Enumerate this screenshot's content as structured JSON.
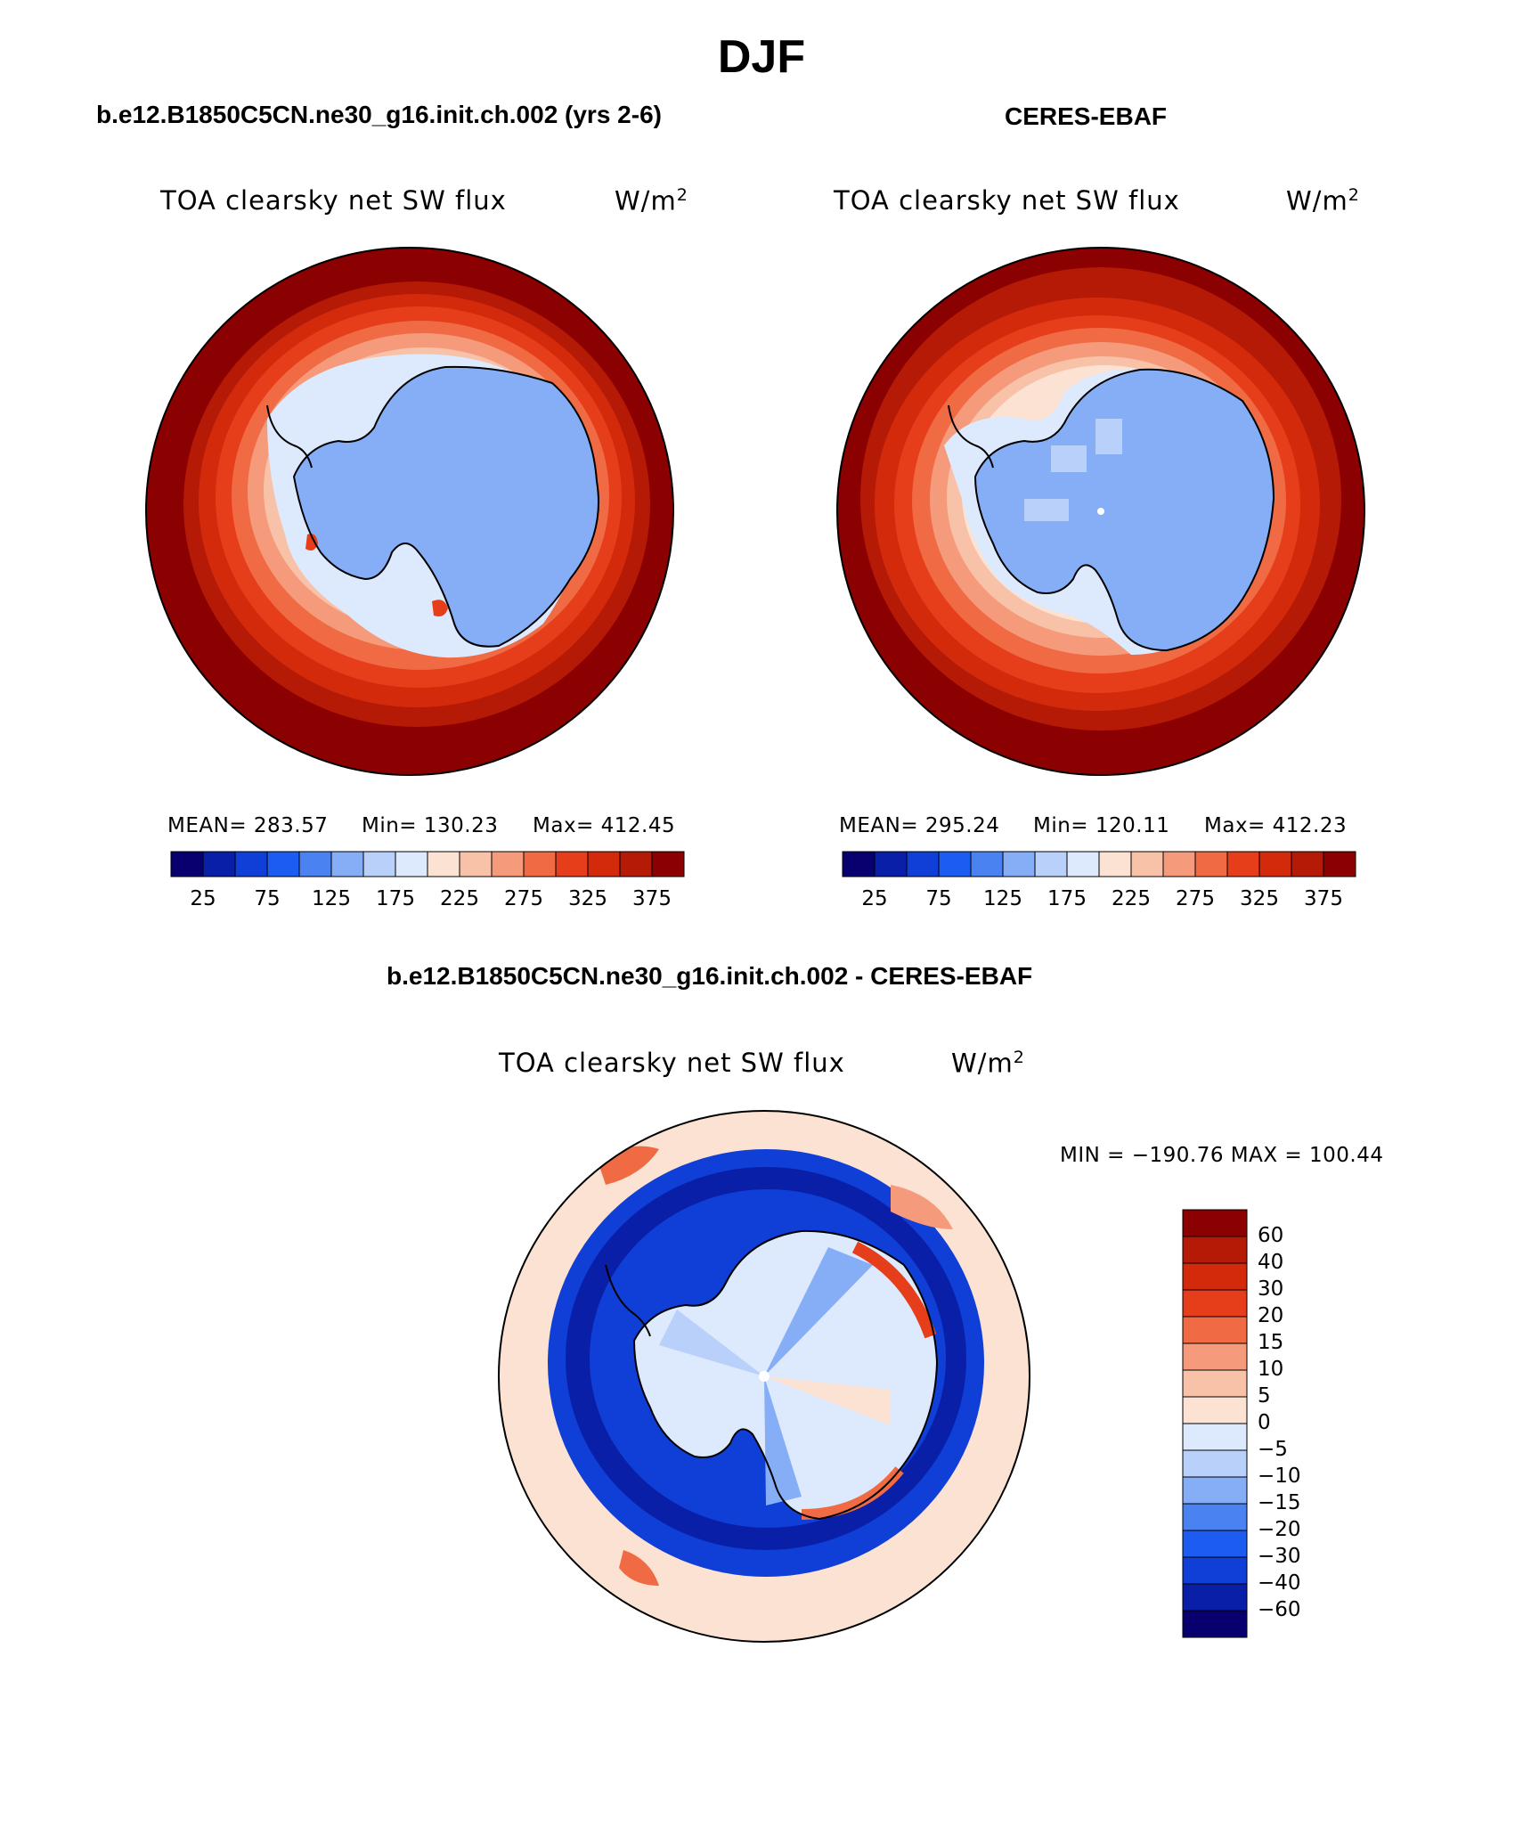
{
  "title": "DJF",
  "panels": [
    {
      "id": "model",
      "title": "b.e12.B1850C5CN.ne30_g16.init.ch.002 (yrs 2-6)",
      "variable": "TOA clearsky net SW flux",
      "units": "W/m",
      "units_exponent": "2",
      "stats": {
        "mean": "MEAN= 283.57",
        "min": "Min= 130.23",
        "max": "Max= 412.45"
      },
      "colorbar_ticks": [
        "25",
        "75",
        "125",
        "175",
        "225",
        "275",
        "325",
        "375"
      ]
    },
    {
      "id": "obs",
      "title": "CERES-EBAF",
      "variable": "TOA clearsky net SW flux",
      "units": "W/m",
      "units_exponent": "2",
      "stats": {
        "mean": "MEAN= 295.24",
        "min": "Min= 120.11",
        "max": "Max= 412.23"
      },
      "colorbar_ticks": [
        "25",
        "75",
        "125",
        "175",
        "225",
        "275",
        "325",
        "375"
      ]
    }
  ],
  "difference": {
    "title": "b.e12.B1850C5CN.ne30_g16.init.ch.002 - CERES-EBAF",
    "variable": "TOA clearsky net SW flux",
    "units": "W/m",
    "units_exponent": "2",
    "stats": "MIN = −190.76 MAX = 100.44",
    "colorbar_ticks": [
      "60",
      "40",
      "30",
      "20",
      "15",
      "10",
      "5",
      "0",
      "−5",
      "−10",
      "−15",
      "−20",
      "−30",
      "−40",
      "−60"
    ]
  },
  "colors": {
    "abs_scale": [
      "#08006e",
      "#0a1fa8",
      "#0f3fd6",
      "#1d5cf0",
      "#4a82f2",
      "#86aef7",
      "#b8d0fa",
      "#dde9fc",
      "#fbe2d2",
      "#f8c2a8",
      "#f59b7c",
      "#f06a44",
      "#e63e1b",
      "#d42a0c",
      "#b51a06",
      "#8b0000"
    ],
    "diff_scale": [
      "#08006e",
      "#0a1fa8",
      "#0f3fd6",
      "#1d5cf0",
      "#4a82f2",
      "#86aef7",
      "#b8d0fa",
      "#dde9fc",
      "#fbe2d2",
      "#f8c2a8",
      "#f59b7c",
      "#f06a44",
      "#e63e1b",
      "#d42a0c",
      "#b51a06",
      "#8b0000"
    ]
  }
}
